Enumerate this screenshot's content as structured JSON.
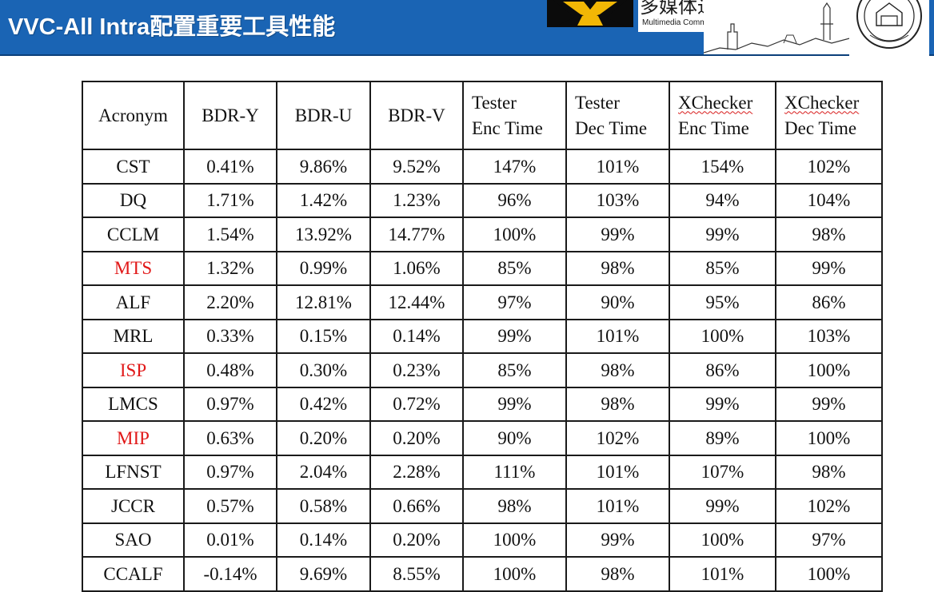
{
  "slide": {
    "title": "VVC-All Intra配置重要工具性能",
    "lab_name_cn": "多媒体通信实验室",
    "lab_name_en": "Multimedia Communication Laboratory"
  },
  "colors": {
    "header": "#1a64b4",
    "highlight": "#e11818",
    "logo_gold": "#f2b705"
  },
  "table": {
    "headers": [
      {
        "line1": "Acronym",
        "line2": ""
      },
      {
        "line1": "BDR-Y",
        "line2": ""
      },
      {
        "line1": "BDR-U",
        "line2": ""
      },
      {
        "line1": "BDR-V",
        "line2": ""
      },
      {
        "line1": "Tester",
        "line2": "Enc Time"
      },
      {
        "line1": "Tester",
        "line2": "Dec Time"
      },
      {
        "line1": "XChecker",
        "line2": "Enc Time"
      },
      {
        "line1": "XChecker",
        "line2": "Dec Time"
      }
    ],
    "rows": [
      {
        "acronym": "CST",
        "highlight": false,
        "values": [
          "0.41%",
          "9.86%",
          "9.52%",
          "147%",
          "101%",
          "154%",
          "102%"
        ]
      },
      {
        "acronym": "DQ",
        "highlight": false,
        "values": [
          "1.71%",
          "1.42%",
          "1.23%",
          "96%",
          "103%",
          "94%",
          "104%"
        ]
      },
      {
        "acronym": "CCLM",
        "highlight": false,
        "values": [
          "1.54%",
          "13.92%",
          "14.77%",
          "100%",
          "99%",
          "99%",
          "98%"
        ]
      },
      {
        "acronym": "MTS",
        "highlight": true,
        "values": [
          "1.32%",
          "0.99%",
          "1.06%",
          "85%",
          "98%",
          "85%",
          "99%"
        ]
      },
      {
        "acronym": "ALF",
        "highlight": false,
        "values": [
          "2.20%",
          "12.81%",
          "12.44%",
          "97%",
          "90%",
          "95%",
          "86%"
        ]
      },
      {
        "acronym": "MRL",
        "highlight": false,
        "values": [
          "0.33%",
          "0.15%",
          "0.14%",
          "99%",
          "101%",
          "100%",
          "103%"
        ]
      },
      {
        "acronym": "ISP",
        "highlight": true,
        "values": [
          "0.48%",
          "0.30%",
          "0.23%",
          "85%",
          "98%",
          "86%",
          "100%"
        ]
      },
      {
        "acronym": "LMCS",
        "highlight": false,
        "values": [
          "0.97%",
          "0.42%",
          "0.72%",
          "99%",
          "98%",
          "99%",
          "99%"
        ]
      },
      {
        "acronym": "MIP",
        "highlight": true,
        "values": [
          "0.63%",
          "0.20%",
          "0.20%",
          "90%",
          "102%",
          "89%",
          "100%"
        ]
      },
      {
        "acronym": "LFNST",
        "highlight": false,
        "values": [
          "0.97%",
          "2.04%",
          "2.28%",
          "111%",
          "101%",
          "107%",
          "98%"
        ]
      },
      {
        "acronym": "JCCR",
        "highlight": false,
        "values": [
          "0.57%",
          "0.58%",
          "0.66%",
          "98%",
          "101%",
          "99%",
          "102%"
        ]
      },
      {
        "acronym": "SAO",
        "highlight": false,
        "values": [
          "0.01%",
          "0.14%",
          "0.20%",
          "100%",
          "99%",
          "100%",
          "97%"
        ]
      },
      {
        "acronym": "CCALF",
        "highlight": false,
        "values": [
          "-0.14%",
          "9.69%",
          "8.55%",
          "100%",
          "98%",
          "101%",
          "100%"
        ]
      }
    ]
  }
}
